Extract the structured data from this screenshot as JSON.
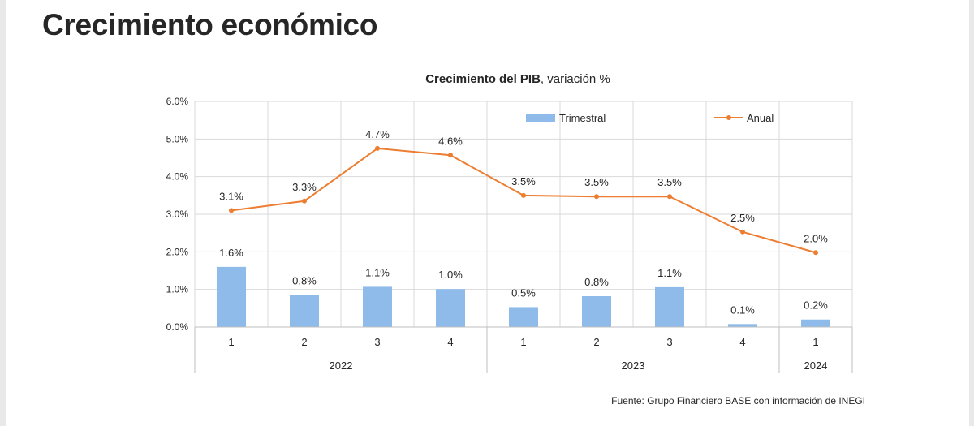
{
  "page": {
    "title": "Crecimiento económico",
    "source": "Fuente: Grupo Financiero BASE con información de INEGI"
  },
  "colors": {
    "bar": "#8ebbea",
    "line": "#ec7d31",
    "grid": "#d9d9d9",
    "axis": "#bfbfbf",
    "text": "#262626"
  },
  "chart_data": {
    "type": "bar",
    "title_bold": "Crecimiento del PIB",
    "title_rest": ", variación %",
    "categories": [
      "1",
      "2",
      "3",
      "4",
      "1",
      "2",
      "3",
      "4",
      "1"
    ],
    "groups": [
      {
        "label": "2022",
        "count": 4
      },
      {
        "label": "2023",
        "count": 4
      },
      {
        "label": "2024",
        "count": 1
      }
    ],
    "series": [
      {
        "name": "Trimestral",
        "type": "bar",
        "values": [
          1.6,
          0.85,
          1.07,
          1.01,
          0.53,
          0.82,
          1.06,
          0.08,
          0.2
        ],
        "labels": [
          "1.6%",
          "0.8%",
          "1.1%",
          "1.0%",
          "0.5%",
          "0.8%",
          "1.1%",
          "0.1%",
          "0.2%"
        ]
      },
      {
        "name": "Anual",
        "type": "line",
        "values": [
          3.1,
          3.35,
          4.75,
          4.57,
          3.5,
          3.47,
          3.47,
          2.53,
          1.98
        ],
        "labels": [
          "3.1%",
          "3.3%",
          "4.7%",
          "4.6%",
          "3.5%",
          "3.5%",
          "3.5%",
          "2.5%",
          "2.0%"
        ]
      }
    ],
    "ylim": [
      0,
      6
    ],
    "yticks": [
      0,
      1,
      2,
      3,
      4,
      5,
      6
    ],
    "ytick_labels": [
      "0.0%",
      "1.0%",
      "2.0%",
      "3.0%",
      "4.0%",
      "5.0%",
      "6.0%"
    ],
    "grid": true,
    "legend_position": "top"
  }
}
